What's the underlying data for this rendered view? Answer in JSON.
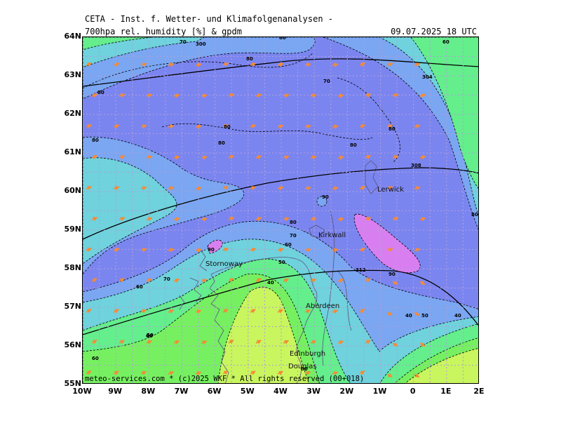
{
  "header": {
    "title": "CETA - Inst. f. Wetter- und Klimafolgenanalysen -",
    "subtitle": "700hpa rel. humidity [%] & gpdm",
    "valid_time": "09.07.2025 18 UTC"
  },
  "footer": {
    "copyright": "meteo-services.com * (c)2025 WKF * All rights reserved (00+018)"
  },
  "map": {
    "lon_range": [
      -10,
      2
    ],
    "lat_range": [
      55,
      64
    ],
    "lon_ticks": [
      "10W",
      "9W",
      "8W",
      "7W",
      "6W",
      "5W",
      "4W",
      "3W",
      "2W",
      "1W",
      "0",
      "1E",
      "2E"
    ],
    "lat_ticks": [
      "64N",
      "63N",
      "62N",
      "61N",
      "60N",
      "59N",
      "58N",
      "57N",
      "56N",
      "55N"
    ],
    "grid": true,
    "colors": {
      "humidity_90_plus": "#d97ef0",
      "humidity_80_90": "#7b85f0",
      "humidity_70_80": "#7aa6f2",
      "humidity_60_70": "#6fd2dc",
      "humidity_50_60": "#64ee8c",
      "humidity_40_50": "#76f060",
      "humidity_below_40": "#c9f55e",
      "wind_arrows": "#f58a36",
      "grid_lines": "#b0a0d8",
      "coastline": "#555577"
    },
    "cities": [
      {
        "name": "Lerwick"
      },
      {
        "name": "Kirkwall"
      },
      {
        "name": "Stornoway"
      },
      {
        "name": "Aberdeen"
      },
      {
        "name": "Edinburgh"
      },
      {
        "name": "Douglas"
      }
    ],
    "humidity_contour_labels": [
      "70",
      "300",
      "80",
      "80",
      "70",
      "60",
      "90",
      "80",
      "80",
      "80",
      "80",
      "80",
      "90",
      "80",
      "80",
      "70",
      "60",
      "50",
      "40",
      "60",
      "70",
      "90",
      "50",
      "60",
      "60",
      "50",
      "40",
      "60",
      "40",
      "80"
    ],
    "geopotential_labels": [
      "304",
      "308",
      "312"
    ]
  }
}
